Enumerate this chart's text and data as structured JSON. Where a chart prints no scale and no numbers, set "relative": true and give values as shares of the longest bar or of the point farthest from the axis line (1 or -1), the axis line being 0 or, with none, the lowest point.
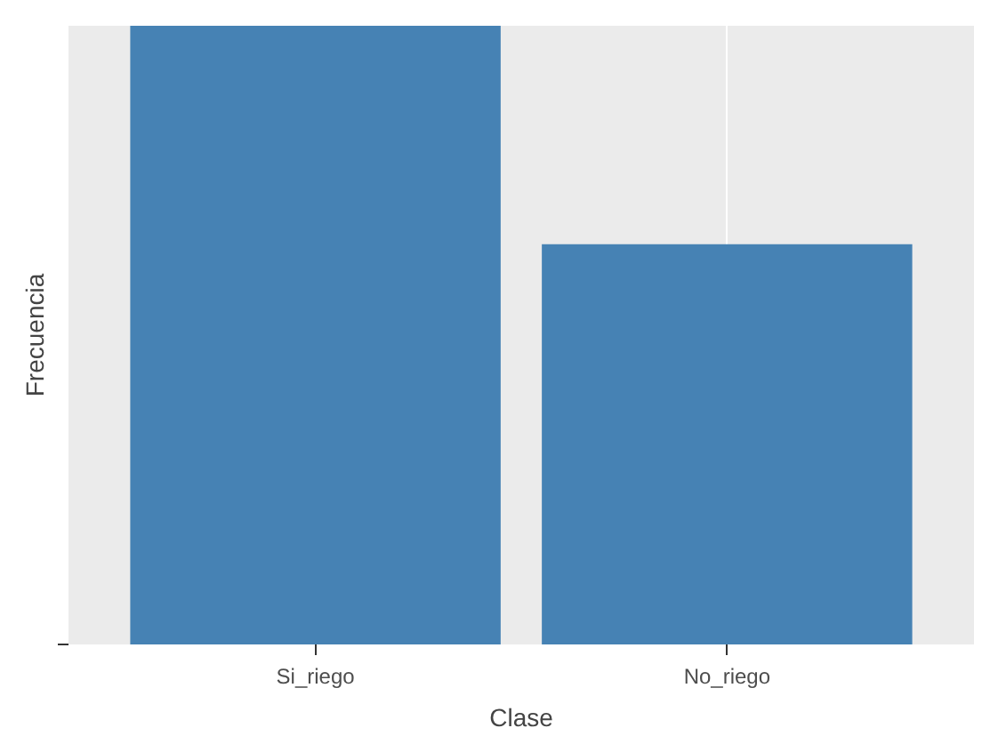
{
  "chart_data": {
    "type": "bar",
    "xlabel": "Clase",
    "ylabel": "Frecuencia",
    "categories": [
      "Si_riego",
      "No_riego"
    ],
    "values": [
      1,
      0.647
    ],
    "color": "#4682b4",
    "relative": true,
    "grid": "x"
  }
}
